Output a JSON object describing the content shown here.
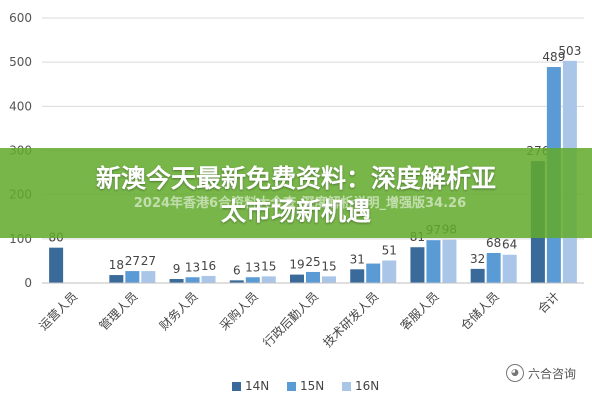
{
  "chart_data": {
    "type": "bar",
    "categories": [
      "运营人员",
      "管理人员",
      "财务人员",
      "采购人员",
      "行政后勤人员",
      "技术研发人员",
      "客服人员",
      "仓储人员",
      "合计"
    ],
    "series": [
      {
        "name": "14N",
        "color": "#3a6a99",
        "values": [
          80,
          18,
          9,
          6,
          19,
          31,
          81,
          32,
          276
        ]
      },
      {
        "name": "15N",
        "color": "#5b9bd5",
        "values": [
          null,
          27,
          13,
          13,
          25,
          44,
          97,
          68,
          489
        ]
      },
      {
        "name": "16N",
        "color": "#a9c6e8",
        "values": [
          null,
          27,
          16,
          15,
          15,
          51,
          98,
          64,
          503
        ]
      }
    ],
    "labels": {
      "14N": [
        "80",
        "18",
        "9",
        "6",
        "19",
        "31",
        "81",
        "32",
        "276"
      ],
      "15N": [
        "",
        "27",
        "13",
        "13",
        "25",
        "",
        "97",
        "68",
        "489"
      ],
      "16N": [
        "",
        "27",
        "16",
        "15",
        "15",
        "51",
        "98",
        "64",
        "503"
      ]
    },
    "ylim": [
      0,
      600
    ],
    "yticks": [
      0,
      100,
      200,
      300,
      400,
      500,
      600
    ],
    "legend_position": "bottom",
    "grid": true
  },
  "overlay": {
    "title_line1": "新澳今天最新免费资料：深度解析亚",
    "title_line2": "太市场新机遇",
    "subtitle": "2024年香港6合资料大全查-深度解析说明_增强版34.26"
  },
  "watermark": {
    "text": "六合咨询"
  }
}
